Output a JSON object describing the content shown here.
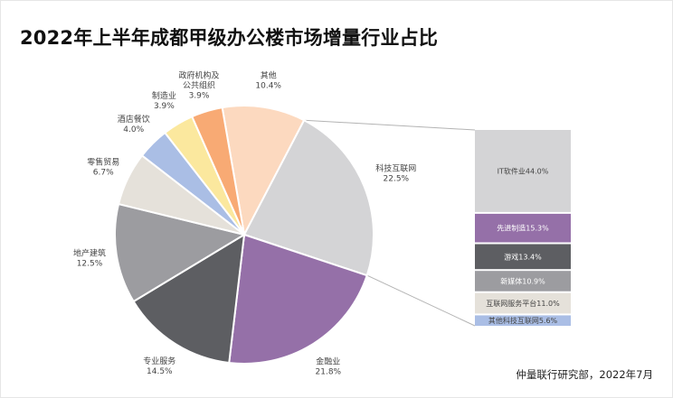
{
  "title": "2022年上半年成都甲级办公楼市场增量行业占比",
  "source": "仲量联行研究部，2022年7月",
  "chart_data": {
    "type": "pie",
    "title": "2022年上半年成都甲级办公楼市场增量行业占比",
    "slices": [
      {
        "name": "其他",
        "value": 10.4,
        "value_label": "10.4%",
        "color": "#fcd9bf"
      },
      {
        "name": "科技互联网",
        "value": 22.5,
        "value_label": "22.5%",
        "color": "#d4d4d6"
      },
      {
        "name": "金融业",
        "value": 21.8,
        "value_label": "21.8%",
        "color": "#9570a8"
      },
      {
        "name": "专业服务",
        "value": 14.5,
        "value_label": "14.5%",
        "color": "#5d5e62"
      },
      {
        "name": "地产建筑",
        "value": 12.5,
        "value_label": "12.5%",
        "color": "#9c9ca0"
      },
      {
        "name": "零售贸易",
        "value": 6.7,
        "value_label": "6.7%",
        "color": "#e5e1da"
      },
      {
        "name": "酒店餐饮",
        "value": 4.0,
        "value_label": "4.0%",
        "color": "#aabee5"
      },
      {
        "name": "制造业",
        "value": 3.9,
        "value_label": "3.9%",
        "color": "#fbe89e"
      },
      {
        "name": "政府机构及\n公共组织",
        "value": 3.9,
        "value_label": "3.9%",
        "color": "#f8aa74"
      }
    ],
    "breakdown": {
      "parent": "科技互联网",
      "segments": [
        {
          "name": "IT软件业",
          "value": 44.0,
          "value_label": "44.0%",
          "color": "#d4d4d6",
          "text_color": "#444444"
        },
        {
          "name": "先进制造",
          "value": 15.3,
          "value_label": "15.3%",
          "color": "#9570a8",
          "text_color": "#ffffff"
        },
        {
          "name": "游戏",
          "value": 13.4,
          "value_label": "13.4%",
          "color": "#5d5e62",
          "text_color": "#ffffff"
        },
        {
          "name": "新媒体",
          "value": 10.9,
          "value_label": "10.9%",
          "color": "#9c9ca0",
          "text_color": "#ffffff"
        },
        {
          "name": "互联网服务平台",
          "value": 11.0,
          "value_label": "11.0%",
          "color": "#e5e1da",
          "text_color": "#444444"
        },
        {
          "name": "其他科技互联网",
          "value": 5.6,
          "value_label": "5.6%",
          "color": "#aabee5",
          "text_color": "#444444"
        }
      ]
    }
  }
}
